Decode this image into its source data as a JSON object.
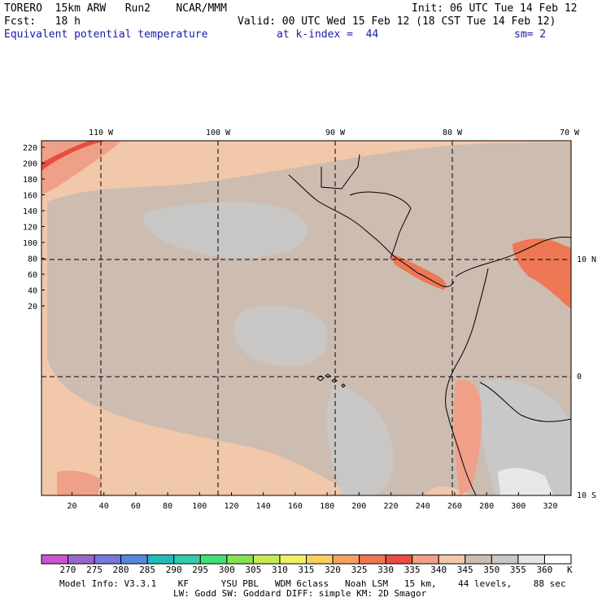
{
  "header": {
    "model_name": "TORERO  15km ARW   Run2    NCAR/MMM",
    "init": "Init: 06 UTC Tue 14 Feb 12",
    "fcst": "Fcst:   18 h",
    "valid": "Valid: 00 UTC Wed 15 Feb 12 (18 CST Tue 14 Feb 12)",
    "field": "Equivalent potential temperature",
    "level": "at k-index =  44",
    "smooth": "sm= 2"
  },
  "axes": {
    "top_labels": [
      "110 W",
      "100 W",
      "90 W",
      "80 W",
      "70 W"
    ],
    "right_labels": [
      "10 N",
      "0",
      "10 S"
    ],
    "left_labels": [
      "220",
      "200",
      "180",
      "160",
      "140",
      "120",
      "100",
      "80",
      "60",
      "40",
      "20"
    ],
    "bottom_labels": [
      "20",
      "40",
      "60",
      "80",
      "100",
      "120",
      "140",
      "160",
      "180",
      "200",
      "220",
      "240",
      "260",
      "280",
      "300",
      "320"
    ]
  },
  "colorbar": {
    "labels": [
      "270",
      "275",
      "280",
      "285",
      "290",
      "295",
      "300",
      "305",
      "310",
      "315",
      "320",
      "325",
      "330",
      "335",
      "340",
      "345",
      "350",
      "355",
      "360"
    ],
    "unit": "K",
    "colors": [
      "#cc55cc",
      "#9966cc",
      "#7777dd",
      "#5588dd",
      "#22bbbb",
      "#33ccaa",
      "#44dd77",
      "#88e055",
      "#c8e855",
      "#f0f066",
      "#f7d060",
      "#f5a060",
      "#ee7755",
      "#e84d40",
      "#f0a088",
      "#f2c8aa",
      "#cdbcb0",
      "#c8c8c8",
      "#e6e6e6",
      "#ffffff"
    ]
  },
  "footer": {
    "line1": "Model Info: V3.3.1    KF      YSU PBL   WDM 6class   Noah LSM   15 km,    44 levels,    88 sec",
    "line2": "LW: Godd SW: Goddard DIFF: simple KM: 2D Smagor"
  }
}
